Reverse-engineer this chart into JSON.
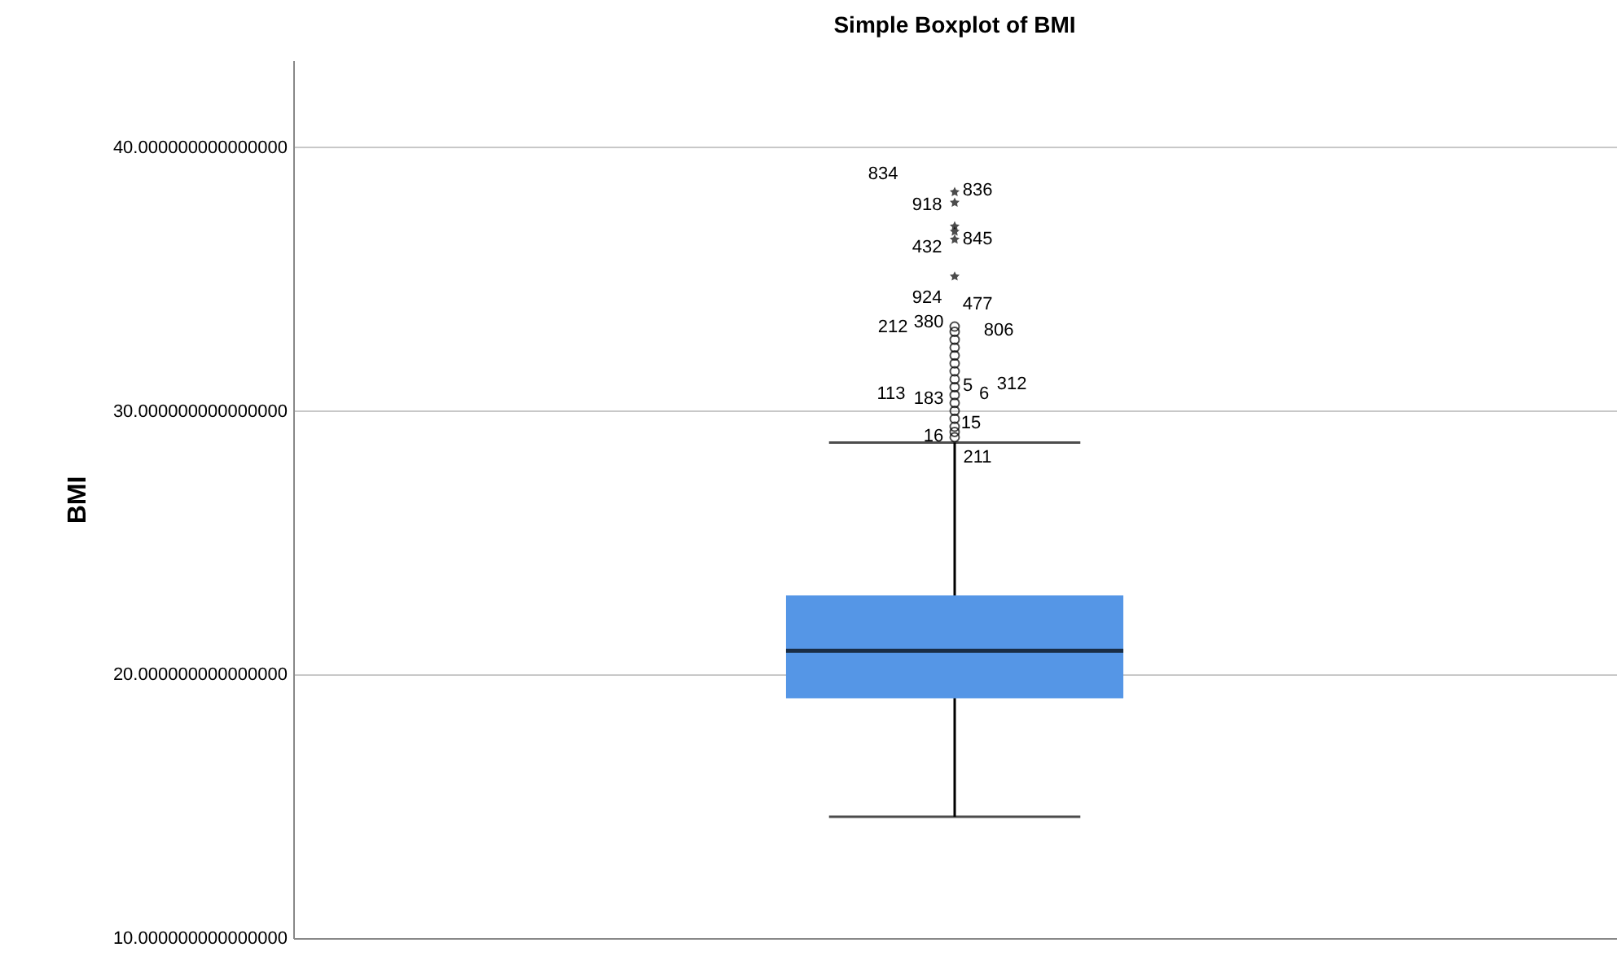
{
  "chart_data": {
    "type": "box",
    "title": "Simple Boxplot of BMI",
    "ylabel": "BMI",
    "categories": [
      null
    ],
    "boxes": [
      {
        "low": 14.6,
        "q1": 19.1,
        "median": 20.9,
        "q3": 23.0,
        "high": 28.8,
        "outliers": [
          38.3,
          37.9,
          37.0,
          36.8,
          36.5,
          35.1,
          33.2,
          33.0,
          32.7,
          32.4,
          32.1,
          31.8,
          31.5,
          31.2,
          30.9,
          30.6,
          30.3,
          30.0,
          29.7,
          29.4,
          29.2,
          29.0
        ]
      }
    ],
    "color": "#5596e6",
    "ylim": [
      10,
      43.3
    ],
    "yticks": [
      {
        "value": 10,
        "label": "10.000000000000000"
      },
      {
        "value": 20,
        "label": "20.000000000000000"
      },
      {
        "value": 30,
        "label": "30.000000000000000"
      },
      {
        "value": 40,
        "label": "40.000000000000000"
      }
    ],
    "grid": "y",
    "tick_labels": "y",
    "marker": "circle",
    "annotations": [
      "834",
      "836",
      "918",
      "845",
      "432",
      "477",
      "924",
      "806",
      "212",
      "5",
      "380",
      "6",
      "113",
      "312",
      "183",
      "15",
      "16",
      "211"
    ]
  }
}
